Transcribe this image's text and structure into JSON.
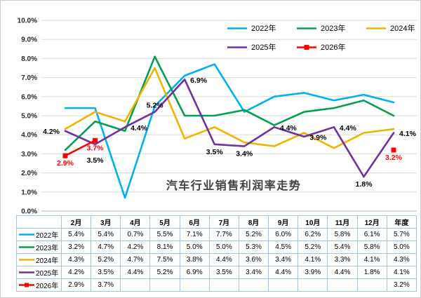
{
  "title": "汽车行业销售利润率走势",
  "chart_data": {
    "type": "line",
    "categories": [
      "2月",
      "3月",
      "4月",
      "5月",
      "6月",
      "7月",
      "8月",
      "9月",
      "10月",
      "11月",
      "12月",
      "年度"
    ],
    "ylim": [
      0,
      10
    ],
    "ytick_step": 1,
    "yticks": [
      "0.0%",
      "1.0%",
      "2.0%",
      "3.0%",
      "4.0%",
      "5.0%",
      "6.0%",
      "7.0%",
      "8.0%",
      "9.0%",
      "10.0%"
    ],
    "grid": "horizontal",
    "legend_position": "top-right",
    "legend_rows": [
      3,
      2
    ],
    "series": [
      {
        "name": "2022年",
        "color": "#00B0F0",
        "values": [
          5.4,
          5.4,
          0.7,
          5.5,
          7.1,
          7.7,
          5.2,
          6.0,
          6.2,
          5.8,
          6.1,
          5.7
        ]
      },
      {
        "name": "2023年",
        "color": "#00A050",
        "values": [
          3.2,
          4.7,
          4.2,
          8.1,
          5.0,
          5.0,
          5.3,
          4.5,
          5.2,
          5.4,
          5.8,
          5.0
        ]
      },
      {
        "name": "2024年",
        "color": "#F2B200",
        "values": [
          4.3,
          5.2,
          4.7,
          7.5,
          3.8,
          4.4,
          3.6,
          3.4,
          4.1,
          3.3,
          4.1,
          4.3
        ]
      },
      {
        "name": "2025年",
        "color": "#7030A0",
        "label_color": "#000000",
        "values": [
          4.2,
          3.5,
          4.4,
          5.2,
          6.9,
          3.5,
          3.4,
          4.4,
          3.9,
          4.4,
          1.8,
          4.1
        ],
        "label_pos": [
          "left",
          "below-far",
          "right",
          "above",
          "right",
          "below",
          "below",
          "right",
          "right",
          "right",
          "below",
          "right"
        ]
      },
      {
        "name": "2026年",
        "color": "#FF0000",
        "label_color": "#FF0000",
        "marker": "square",
        "values": [
          2.9,
          3.7,
          null,
          null,
          null,
          null,
          null,
          null,
          null,
          null,
          null,
          3.2
        ],
        "label_pos": [
          "below",
          "below",
          null,
          null,
          null,
          null,
          null,
          null,
          null,
          null,
          null,
          "below"
        ]
      }
    ]
  },
  "table": {
    "corner": "",
    "columns": [
      "2月",
      "3月",
      "4月",
      "5月",
      "6月",
      "7月",
      "8月",
      "9月",
      "10月",
      "11月",
      "12月",
      "年度"
    ],
    "rows": [
      {
        "label": "2022年",
        "cells": [
          "5.4%",
          "5.4%",
          "0.7%",
          "5.5%",
          "7.1%",
          "7.7%",
          "5.2%",
          "6.0%",
          "6.2%",
          "5.8%",
          "6.1%",
          "5.7%"
        ]
      },
      {
        "label": "2023年",
        "cells": [
          "3.2%",
          "4.7%",
          "4.2%",
          "8.1%",
          "5.0%",
          "5.0%",
          "5.3%",
          "4.5%",
          "5.2%",
          "5.4%",
          "5.8%",
          "5.0%"
        ]
      },
      {
        "label": "2024年",
        "cells": [
          "4.3%",
          "5.2%",
          "4.7%",
          "7.5%",
          "3.8%",
          "4.4%",
          "3.6%",
          "3.4%",
          "4.1%",
          "3.3%",
          "4.1%",
          "4.3%"
        ]
      },
      {
        "label": "2025年",
        "cells": [
          "4.2%",
          "3.5%",
          "4.4%",
          "5.2%",
          "6.9%",
          "3.5%",
          "3.4%",
          "4.4%",
          "3.9%",
          "4.4%",
          "1.8%",
          "4.1%"
        ]
      },
      {
        "label": "2026年",
        "cells": [
          "2.9%",
          "3.7%",
          "",
          "",
          "",
          "",
          "",
          "",
          "",
          "",
          "",
          "3.2%"
        ]
      }
    ]
  }
}
